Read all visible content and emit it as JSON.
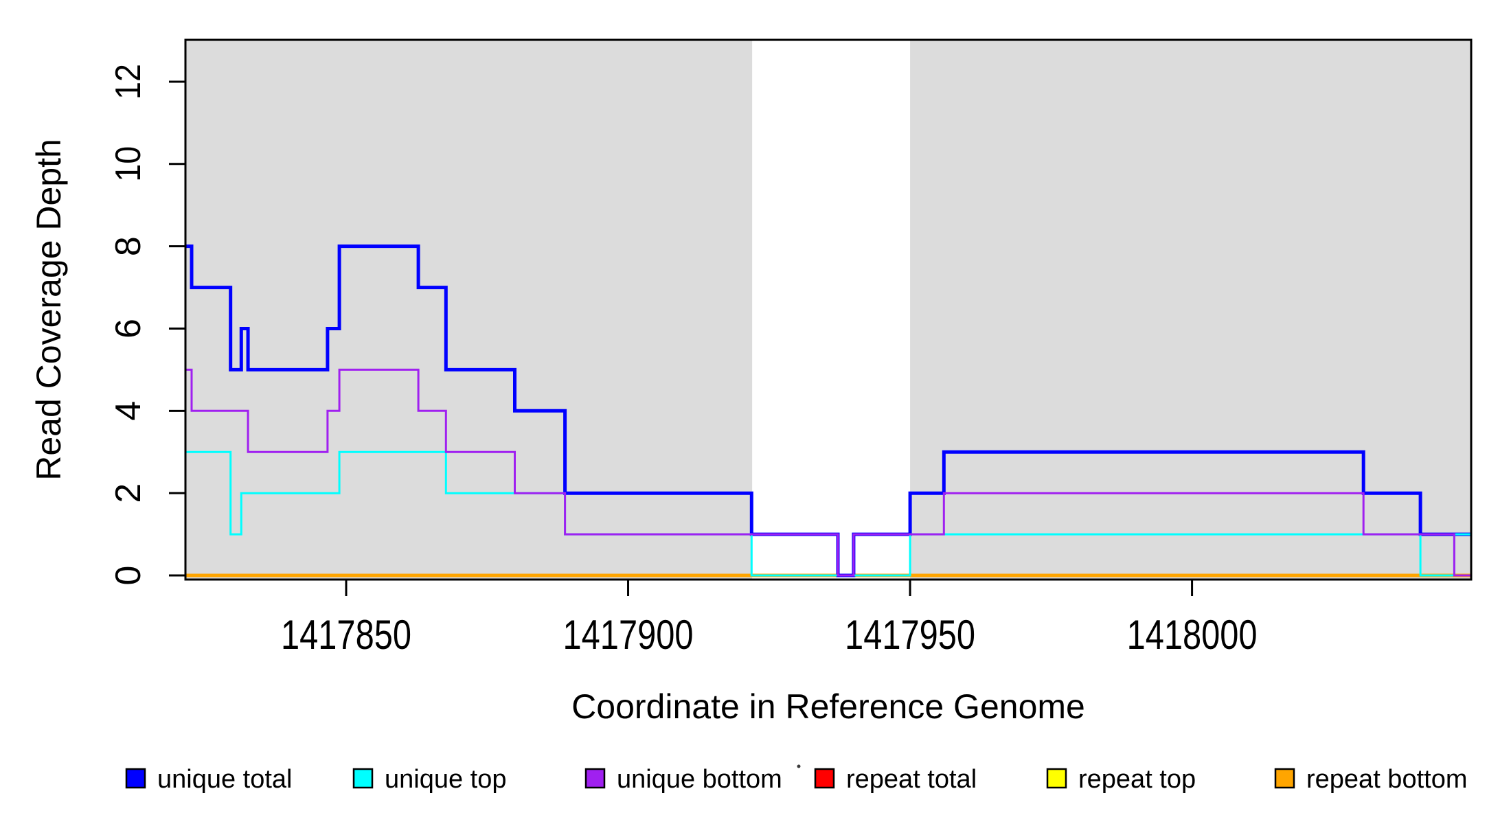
{
  "figure": {
    "background": "#ffffff",
    "frame_color": "#000000"
  },
  "chart_data": {
    "type": "line",
    "variant": "step-coverage",
    "title": "",
    "xlabel": "Coordinate in Reference Genome",
    "ylabel": "Read Coverage Depth",
    "xlim": [
      1417821.5,
      1418049.5
    ],
    "ylim": [
      0,
      13
    ],
    "x_ticks": [
      1417850,
      1417900,
      1417950,
      1418000
    ],
    "y_ticks": [
      0,
      2,
      4,
      6,
      8,
      10,
      12
    ],
    "grid": false,
    "background_bands": [
      {
        "x_start": 1417821.5,
        "x_end": 1417922.0,
        "color": "#DCDCDC"
      },
      {
        "x_start": 1417950.0,
        "x_end": 1418049.5,
        "color": "#DCDCDC"
      }
    ],
    "series": [
      {
        "name": "repeat total",
        "color": "#FF0000",
        "width": 3,
        "points": [
          [
            1417821.5,
            0
          ]
        ]
      },
      {
        "name": "repeat top",
        "color": "#FFFF00",
        "width": 3,
        "points": [
          [
            1417821.5,
            0
          ]
        ]
      },
      {
        "name": "repeat bottom",
        "color": "#FFA500",
        "width": 5,
        "points": [
          [
            1417821.5,
            0
          ]
        ]
      },
      {
        "name": "unique total",
        "color": "#0000FF",
        "width": 5,
        "points": [
          [
            1417821.5,
            8
          ],
          [
            1417822.6,
            7
          ],
          [
            1417829.5,
            5
          ],
          [
            1417831.4,
            6
          ],
          [
            1417832.6,
            5
          ],
          [
            1417846.7,
            6
          ],
          [
            1417848.8,
            8
          ],
          [
            1417862.8,
            7
          ],
          [
            1417867.7,
            5
          ],
          [
            1417879.9,
            4
          ],
          [
            1417888.8,
            2
          ],
          [
            1417921.9,
            1
          ],
          [
            1417937.2,
            0
          ],
          [
            1417940.0,
            1
          ],
          [
            1417950.0,
            2
          ],
          [
            1417956.0,
            3
          ],
          [
            1418030.4,
            2
          ],
          [
            1418040.5,
            1
          ]
        ]
      },
      {
        "name": "unique top",
        "color": "#00FFFF",
        "width": 3,
        "points": [
          [
            1417821.5,
            3
          ],
          [
            1417829.5,
            1
          ],
          [
            1417831.4,
            2
          ],
          [
            1417848.8,
            3
          ],
          [
            1417867.7,
            2
          ],
          [
            1417888.8,
            1
          ],
          [
            1417921.9,
            0
          ],
          [
            1417950.0,
            1
          ],
          [
            1418040.5,
            0
          ],
          [
            1418046.5,
            1
          ]
        ]
      },
      {
        "name": "unique bottom",
        "color": "#A020F0",
        "width": 3,
        "points": [
          [
            1417821.5,
            5
          ],
          [
            1417822.6,
            4
          ],
          [
            1417832.6,
            3
          ],
          [
            1417846.7,
            4
          ],
          [
            1417848.8,
            5
          ],
          [
            1417862.8,
            4
          ],
          [
            1417867.7,
            3
          ],
          [
            1417879.9,
            2
          ],
          [
            1417888.8,
            1
          ],
          [
            1417937.2,
            0
          ],
          [
            1417940.0,
            1
          ],
          [
            1417956.0,
            2
          ],
          [
            1418030.4,
            1
          ],
          [
            1418046.5,
            0
          ]
        ]
      }
    ],
    "legend": {
      "position": "bottom",
      "entries": [
        {
          "label": "unique total",
          "color": "#0000FF"
        },
        {
          "label": "unique top",
          "color": "#00FFFF"
        },
        {
          "label": "unique bottom",
          "color": "#A020F0"
        },
        {
          "label": "repeat total",
          "color": "#FF0000"
        },
        {
          "label": "repeat top",
          "color": "#FFFF00"
        },
        {
          "label": "repeat bottom",
          "color": "#FFA500"
        }
      ]
    }
  }
}
